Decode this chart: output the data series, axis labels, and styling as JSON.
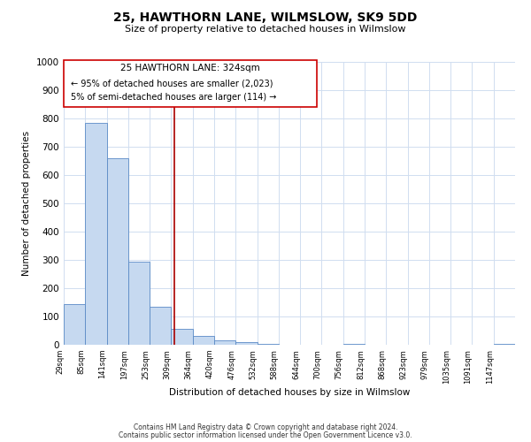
{
  "title": "25, HAWTHORN LANE, WILMSLOW, SK9 5DD",
  "subtitle": "Size of property relative to detached houses in Wilmslow",
  "xlabel": "Distribution of detached houses by size in Wilmslow",
  "ylabel": "Number of detached properties",
  "bin_labels": [
    "29sqm",
    "85sqm",
    "141sqm",
    "197sqm",
    "253sqm",
    "309sqm",
    "364sqm",
    "420sqm",
    "476sqm",
    "532sqm",
    "588sqm",
    "644sqm",
    "700sqm",
    "756sqm",
    "812sqm",
    "868sqm",
    "923sqm",
    "979sqm",
    "1035sqm",
    "1091sqm",
    "1147sqm"
  ],
  "bar_heights": [
    143,
    783,
    660,
    295,
    135,
    57,
    32,
    15,
    8,
    2,
    0,
    0,
    0,
    2,
    0,
    0,
    0,
    0,
    0,
    0,
    4
  ],
  "bar_color": "#c6d9f0",
  "bar_edge_color": "#5a8ac6",
  "ylim": [
    0,
    1000
  ],
  "yticks": [
    0,
    100,
    200,
    300,
    400,
    500,
    600,
    700,
    800,
    900,
    1000
  ],
  "property_line_x": 5.15,
  "property_line_color": "#aa0000",
  "annotation_title": "25 HAWTHORN LANE: 324sqm",
  "annotation_line1": "← 95% of detached houses are smaller (2,023)",
  "annotation_line2": "5% of semi-detached houses are larger (114) →",
  "footer_line1": "Contains HM Land Registry data © Crown copyright and database right 2024.",
  "footer_line2": "Contains public sector information licensed under the Open Government Licence v3.0.",
  "grid_color": "#d0ddf0",
  "background_color": "#ffffff"
}
